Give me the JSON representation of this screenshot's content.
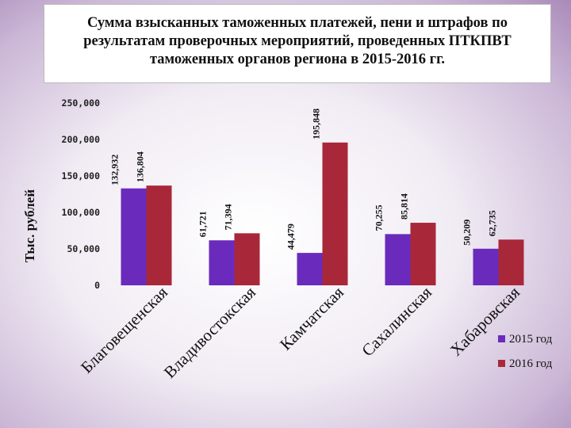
{
  "title": {
    "line1": "Сумма взысканных таможенных платежей, пени и штрафов по",
    "line2": "результатам проверочных мероприятий, проведенных ПТКПВТ",
    "line3": "таможенных органов региона в 2015-2016 гг."
  },
  "colors": {
    "series_2015": "#6a2bbd",
    "series_2016": "#a8283a"
  },
  "chart_data": {
    "type": "bar",
    "title": "Сумма взысканных таможенных платежей, пени и штрафов по результатам проверочных мероприятий, проведенных ПТКПВТ таможенных органов региона в 2015-2016 гг.",
    "ylabel": "Тыс. рублей",
    "xlabel": "",
    "ylim": [
      0,
      250000
    ],
    "yticks": [
      0,
      50000,
      100000,
      150000,
      200000,
      250000
    ],
    "ytick_labels": [
      "0",
      "50,000",
      "100,000",
      "150,000",
      "200,000",
      "250,000"
    ],
    "categories": [
      "Благовещенская",
      "Владивостокская",
      "Камчатская",
      "Сахалинская",
      "Хабаровская"
    ],
    "series": [
      {
        "name": "2015 год",
        "values": [
          132932,
          61721,
          44479,
          70255,
          50209
        ],
        "labels": [
          "132,932",
          "61,721",
          "44,479",
          "70,255",
          "50,209"
        ]
      },
      {
        "name": "2016 год",
        "values": [
          136804,
          71394,
          195848,
          85814,
          62735
        ],
        "labels": [
          "136,804",
          "71,394",
          "195,848",
          "85,814",
          "62,735"
        ]
      }
    ],
    "legend_position": "bottom-right",
    "grid": false
  }
}
